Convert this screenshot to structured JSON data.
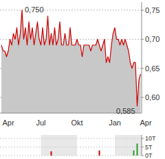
{
  "chart_data": [
    {
      "type": "area",
      "categories": [
        null,
        null,
        null,
        null,
        "Apr",
        null,
        null,
        null,
        null,
        null,
        null,
        null,
        null,
        null,
        null,
        null,
        null,
        null,
        null,
        null,
        null,
        null,
        null,
        "Jul",
        null,
        null,
        null,
        null,
        null,
        null,
        null,
        null,
        null,
        null,
        null,
        null,
        null,
        null,
        null,
        null,
        null,
        null,
        null,
        null,
        "Okt",
        null,
        null,
        null,
        null,
        null,
        null,
        null,
        null,
        null,
        null,
        null,
        null,
        null,
        null,
        null,
        null,
        null,
        null,
        null,
        null,
        null,
        "Jan",
        null,
        null,
        null,
        null,
        null,
        null,
        null,
        null,
        null,
        null,
        null,
        null,
        null,
        null,
        null,
        null,
        null,
        "Apr"
      ],
      "values": [
        0.69,
        0.68,
        0.68,
        0.67,
        0.68,
        0.7,
        0.69,
        0.71,
        0.7,
        0.72,
        0.69,
        0.71,
        0.75,
        0.7,
        0.72,
        0.69,
        0.73,
        0.7,
        0.72,
        0.69,
        0.71,
        0.73,
        0.7,
        0.69,
        0.72,
        0.69,
        0.7,
        0.74,
        0.69,
        0.71,
        0.69,
        0.72,
        0.69,
        0.7,
        0.73,
        0.69,
        0.69,
        0.71,
        0.69,
        0.69,
        0.72,
        0.69,
        0.69,
        0.69,
        0.7,
        0.69,
        0.69,
        0.67,
        0.69,
        0.69,
        0.69,
        0.69,
        0.68,
        0.69,
        0.69,
        0.69,
        0.7,
        0.69,
        0.68,
        0.69,
        0.7,
        0.66,
        0.67,
        0.66,
        0.69,
        0.71,
        0.72,
        0.7,
        0.7,
        0.69,
        0.7,
        0.69,
        0.7,
        0.69,
        0.68,
        0.66,
        0.65,
        0.66,
        0.66,
        0.585,
        0.63,
        0.64,
        null,
        null,
        null
      ],
      "color": "#cc0000",
      "ylim": [
        0.573,
        0.764
      ],
      "yticks": [
        {
          "value": 0.6,
          "label": "0,60"
        },
        {
          "value": 0.65,
          "label": "0,65"
        },
        {
          "value": 0.7,
          "label": "0,70"
        },
        {
          "value": 0.75,
          "label": "0,75"
        }
      ],
      "grid": true,
      "annotations": [
        {
          "text": "0,750",
          "value": 0.75
        },
        {
          "text": "0,585",
          "value": 0.585
        }
      ]
    },
    {
      "type": "bar",
      "values": [
        0,
        0,
        0,
        0,
        0,
        0,
        0,
        0,
        0,
        0,
        0,
        0,
        0,
        0,
        0,
        0,
        0,
        0,
        0,
        0,
        0,
        0,
        0,
        0,
        0,
        0,
        0,
        0,
        0,
        2.5,
        0,
        0,
        0,
        0,
        0,
        0,
        0,
        0,
        0,
        0,
        0,
        0,
        0,
        0,
        0,
        0,
        0,
        0,
        0,
        0,
        0,
        0,
        0,
        0,
        0,
        0,
        0,
        3,
        0,
        0,
        0,
        0,
        0,
        0,
        0,
        0,
        0,
        0,
        0,
        0,
        0,
        0,
        0,
        0,
        0,
        0,
        0,
        3,
        0,
        7,
        0,
        0,
        null,
        null,
        null
      ],
      "colors": [
        "#cc0000",
        "#cc0000",
        "#cc0000",
        "#cc0000",
        "#cc0000",
        "#cc0000",
        "#cc0000",
        "#cc0000",
        "#cc0000",
        "#cc0000",
        "#cc0000",
        "#cc0000",
        "#cc0000",
        "#cc0000",
        "#cc0000",
        "#cc0000",
        "#cc0000",
        "#cc0000",
        "#cc0000",
        "#cc0000",
        "#cc0000",
        "#cc0000",
        "#cc0000",
        "#cc0000",
        "#cc0000",
        "#cc0000",
        "#cc0000",
        "#cc0000",
        "#cc0000",
        "#cc0000",
        "#cc0000",
        "#cc0000",
        "#cc0000",
        "#cc0000",
        "#cc0000",
        "#cc0000",
        "#cc0000",
        "#cc0000",
        "#cc0000",
        "#cc0000",
        "#cc0000",
        "#cc0000",
        "#cc0000",
        "#cc0000",
        "#cc0000",
        "#cc0000",
        "#cc0000",
        "#cc0000",
        "#cc0000",
        "#cc0000",
        "#cc0000",
        "#cc0000",
        "#cc0000",
        "#cc0000",
        "#cc0000",
        "#cc0000",
        "#cc0000",
        "#cc0000",
        "#cc0000",
        "#cc0000",
        "#cc0000",
        "#cc0000",
        "#cc0000",
        "#cc0000",
        "#cc0000",
        "#cc0000",
        "#cc0000",
        "#cc0000",
        "#cc0000",
        "#cc0000",
        "#cc0000",
        "#cc0000",
        "#cc0000",
        "#cc0000",
        "#cc0000",
        "#cc0000",
        "#cc0000",
        "#2a9d2a",
        "#cc0000",
        "#2a9d2a",
        "#cc0000",
        "#cc0000",
        "#cc0000",
        "#cc0000",
        "#cc0000"
      ],
      "ylim": [
        0,
        12
      ],
      "yticks": [
        {
          "value": 0,
          "label": "0T"
        },
        {
          "value": 5,
          "label": "5T"
        },
        {
          "value": 10,
          "label": "10T"
        }
      ],
      "grid": true
    }
  ]
}
